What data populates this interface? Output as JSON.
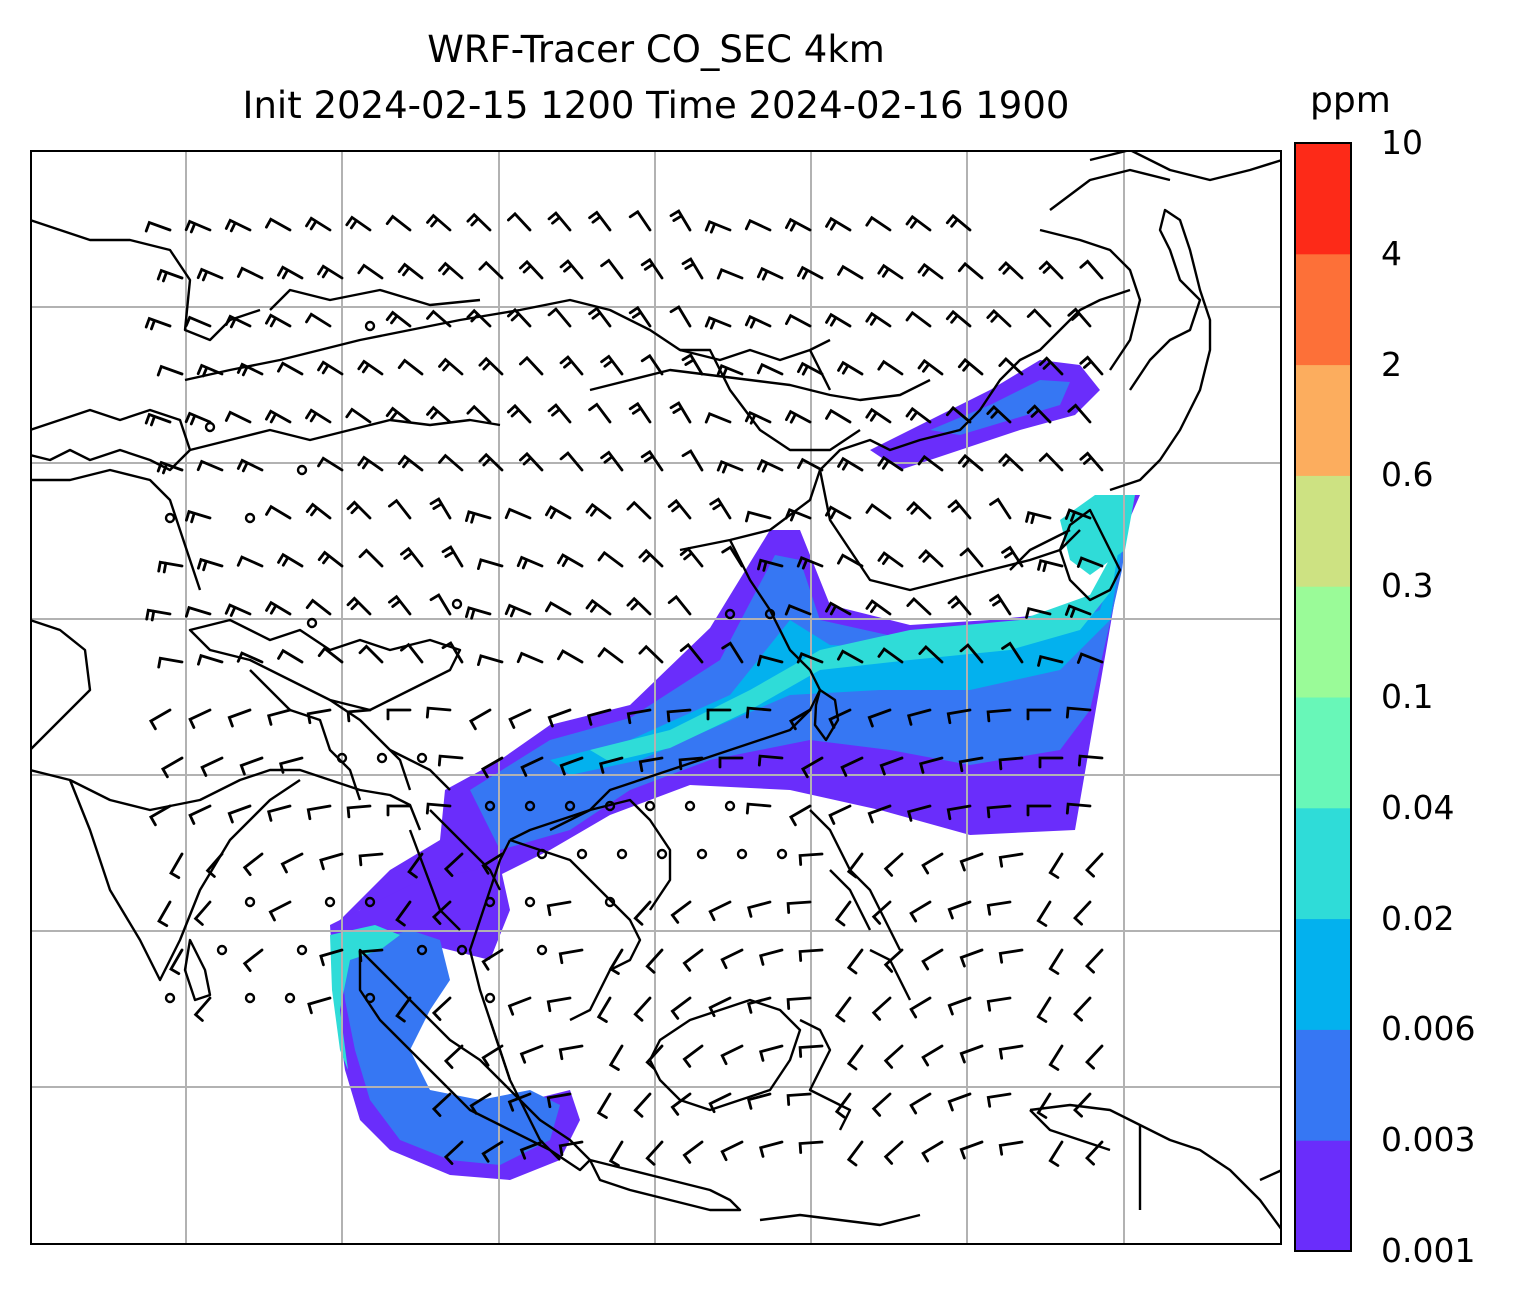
{
  "title": {
    "line1": "WRF-Tracer CO_SEC 4km",
    "line2": "Init 2024-02-15 1200 Time 2024-02-16 1900"
  },
  "colorbar": {
    "unit": "ppm",
    "ticks": [
      "0.001",
      "0.003",
      "0.006",
      "0.02",
      "0.04",
      "0.1",
      "0.3",
      "0.6",
      "2",
      "4",
      "10"
    ],
    "colors": [
      "#6a2dfb",
      "#3677f3",
      "#03b1ee",
      "#2fdcd8",
      "#68f7b8",
      "#9afb98",
      "#cde282",
      "#fcad5e",
      "#fd7038",
      "#fd2a18"
    ]
  },
  "map": {
    "gridlines": true,
    "coastline_color": "#000000",
    "grid_color": "#b2b2b2",
    "feature_names": [
      "coastlines",
      "wind-barbs",
      "co-tracer-plume"
    ]
  }
}
